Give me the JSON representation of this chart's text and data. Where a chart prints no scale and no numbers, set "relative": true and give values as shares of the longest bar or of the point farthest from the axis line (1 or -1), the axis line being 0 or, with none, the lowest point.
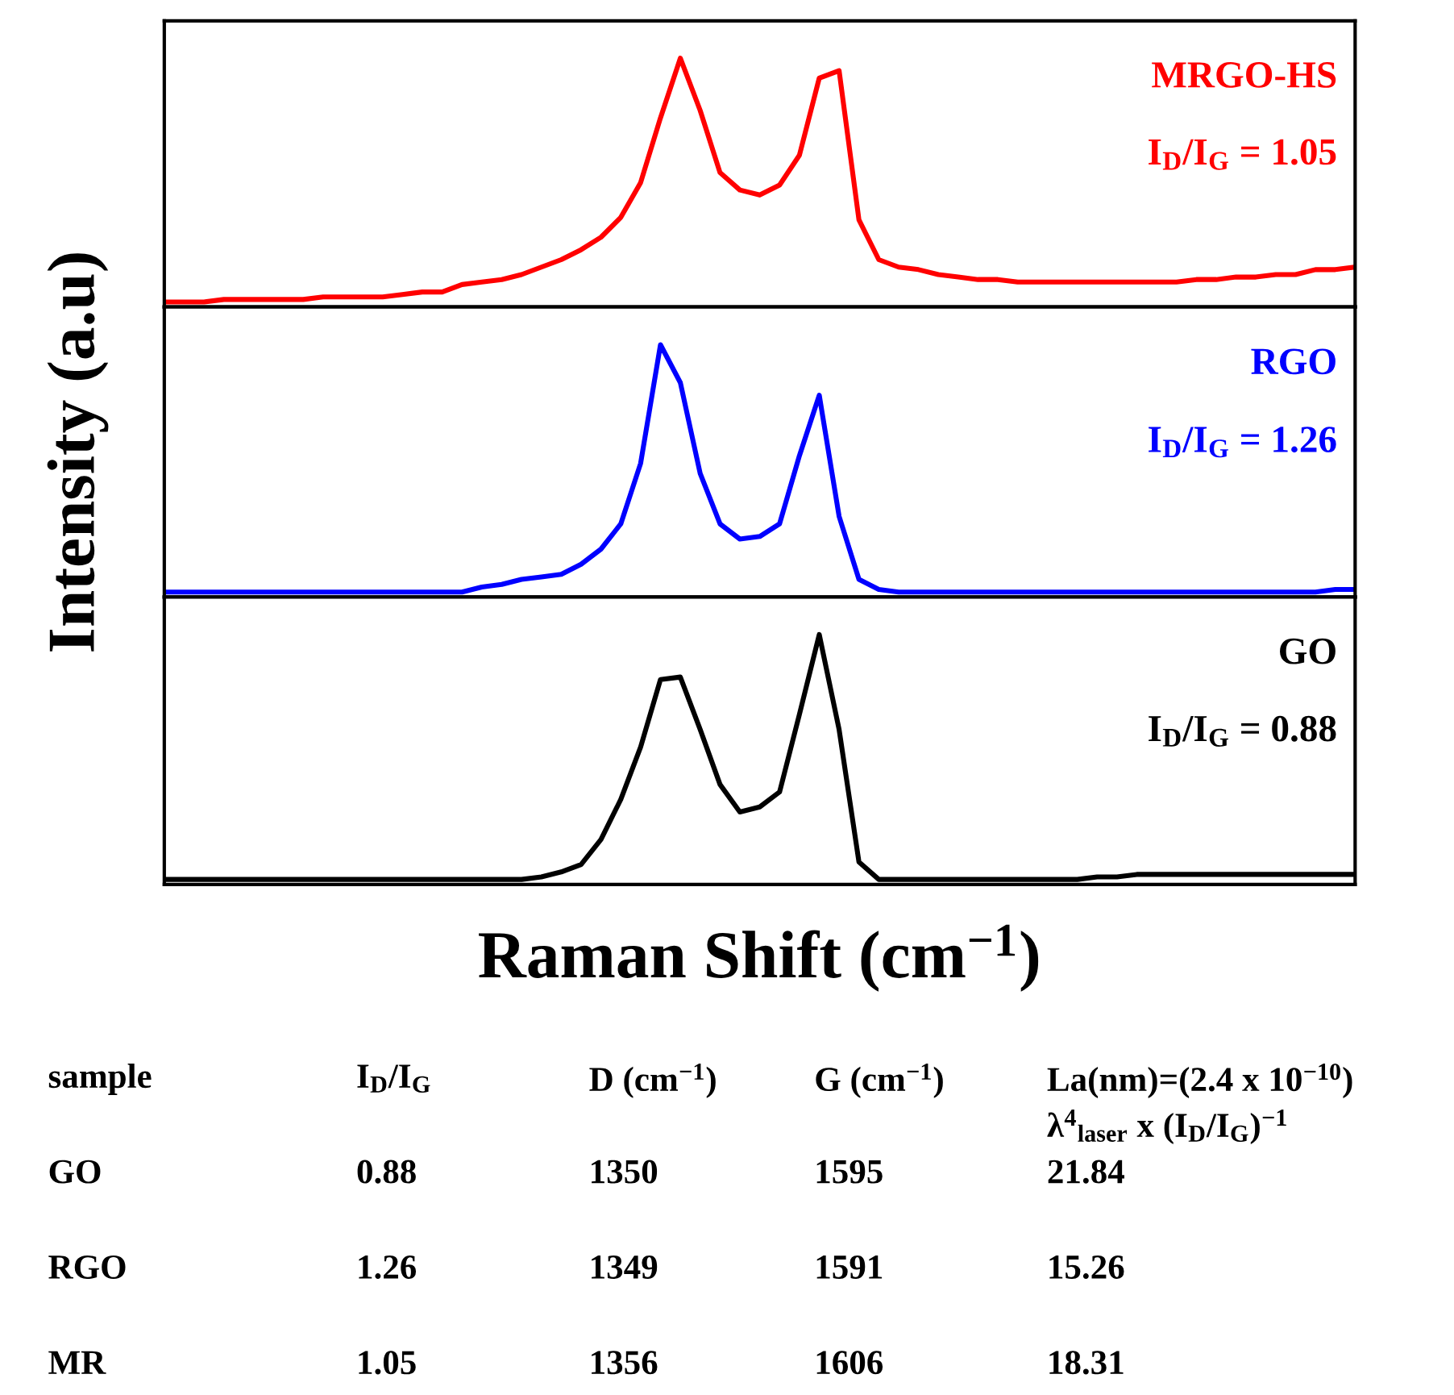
{
  "chart_data": [
    {
      "type": "line",
      "relative": true,
      "categories": [
        null,
        null,
        null,
        null,
        null,
        null,
        null,
        null,
        null,
        null,
        null,
        null,
        null,
        null,
        null,
        null,
        null,
        null,
        null,
        null,
        null,
        null,
        null,
        null,
        null,
        null,
        null,
        null,
        null,
        null,
        null,
        null,
        null,
        null,
        null,
        null,
        null,
        null,
        null,
        null,
        null,
        null,
        null,
        null,
        null,
        null,
        null,
        null,
        null,
        null,
        null,
        null,
        null,
        null,
        null,
        null,
        null,
        null,
        null,
        null,
        null
      ],
      "series": [
        {
          "color": "#ff0000",
          "values": [
            0.02,
            0.02,
            0.02,
            0.03,
            0.03,
            0.03,
            0.03,
            0.03,
            0.04,
            0.04,
            0.04,
            0.04,
            0.05,
            0.06,
            0.06,
            0.09,
            0.1,
            0.11,
            0.13,
            0.16,
            0.19,
            0.23,
            0.28,
            0.36,
            0.5,
            0.76,
            1.0,
            0.79,
            0.54,
            0.47,
            0.45,
            0.49,
            0.61,
            0.92,
            0.95,
            0.35,
            0.19,
            0.16,
            0.15,
            0.13,
            0.12,
            0.11,
            0.11,
            0.1,
            0.1,
            0.1,
            0.1,
            0.1,
            0.1,
            0.1,
            0.1,
            0.1,
            0.11,
            0.11,
            0.12,
            0.12,
            0.13,
            0.13,
            0.15,
            0.15,
            0.16
          ]
        }
      ],
      "annotations": [
        "MRGO-HS",
        "I$_{D}$/I$_{G}$ = 1.05"
      ]
    },
    {
      "type": "line",
      "relative": true,
      "ylabel": "Intensity (a.u)",
      "categories": [
        null,
        null,
        null,
        null,
        null,
        null,
        null,
        null,
        null,
        null,
        null,
        null,
        null,
        null,
        null,
        null,
        null,
        null,
        null,
        null,
        null,
        null,
        null,
        null,
        null,
        null,
        null,
        null,
        null,
        null,
        null,
        null,
        null,
        null,
        null,
        null,
        null,
        null,
        null,
        null,
        null,
        null,
        null,
        null,
        null,
        null,
        null,
        null,
        null,
        null,
        null,
        null,
        null,
        null,
        null,
        null,
        null,
        null,
        null,
        null,
        null
      ],
      "series": [
        {
          "color": "#0000ff",
          "values": [
            0.02,
            0.02,
            0.02,
            0.02,
            0.02,
            0.02,
            0.02,
            0.02,
            0.02,
            0.02,
            0.02,
            0.02,
            0.02,
            0.02,
            0.02,
            0.02,
            0.04,
            0.05,
            0.07,
            0.08,
            0.09,
            0.13,
            0.19,
            0.29,
            0.53,
            1.0,
            0.85,
            0.49,
            0.29,
            0.23,
            0.24,
            0.29,
            0.56,
            0.8,
            0.32,
            0.07,
            0.03,
            0.02,
            0.02,
            0.02,
            0.02,
            0.02,
            0.02,
            0.02,
            0.02,
            0.02,
            0.02,
            0.02,
            0.02,
            0.02,
            0.02,
            0.02,
            0.02,
            0.02,
            0.02,
            0.02,
            0.02,
            0.02,
            0.02,
            0.03,
            0.03
          ]
        }
      ],
      "annotations": [
        "RGO",
        "I$_{D}$/I$_{G}$ = 1.26"
      ]
    },
    {
      "type": "line",
      "relative": true,
      "xlabel": "Raman Shift (cm$^{−1}$)",
      "categories": [
        null,
        null,
        null,
        null,
        null,
        null,
        null,
        null,
        null,
        null,
        null,
        null,
        null,
        null,
        null,
        null,
        null,
        null,
        null,
        null,
        null,
        null,
        null,
        null,
        null,
        null,
        null,
        null,
        null,
        null,
        null,
        null,
        null,
        null,
        null,
        null,
        null,
        null,
        null,
        null,
        null,
        null,
        null,
        null,
        null,
        null,
        null,
        null,
        null,
        null,
        null,
        null,
        null,
        null,
        null,
        null,
        null,
        null,
        null,
        null,
        null
      ],
      "series": [
        {
          "color": "#000000",
          "values": [
            0.02,
            0.02,
            0.02,
            0.02,
            0.02,
            0.02,
            0.02,
            0.02,
            0.02,
            0.02,
            0.02,
            0.02,
            0.02,
            0.02,
            0.02,
            0.02,
            0.02,
            0.02,
            0.02,
            0.03,
            0.05,
            0.08,
            0.18,
            0.34,
            0.55,
            0.82,
            0.83,
            0.62,
            0.4,
            0.29,
            0.31,
            0.37,
            0.68,
            1.0,
            0.62,
            0.09,
            0.02,
            0.02,
            0.02,
            0.02,
            0.02,
            0.02,
            0.02,
            0.02,
            0.02,
            0.02,
            0.02,
            0.03,
            0.03,
            0.04,
            0.04,
            0.04,
            0.04,
            0.04,
            0.04,
            0.04,
            0.04,
            0.04,
            0.04,
            0.04,
            0.04
          ]
        }
      ],
      "annotations": [
        "GO",
        "I$_{D}$/I$_{G}$ = 0.88"
      ]
    },
    {
      "type": "other",
      "annotations": [
        "sample",
        "I$_{D}$/I$_{G}$",
        "D (cm$^{−1}$)",
        "G (cm$^{−1}$)",
        "La(nm)=(2.4 x 10$^{−10}$)\nλ$^{4}$$_{laser}$ x (I$_{D}$/I$_{G}$)$^{−1}$",
        "GO",
        "0.88",
        "1350",
        "1595",
        "21.84",
        "RGO",
        "1.26",
        "1349",
        "1591",
        "15.26",
        "MR",
        "1.05",
        "1356",
        "1606",
        "18.31"
      ]
    }
  ]
}
